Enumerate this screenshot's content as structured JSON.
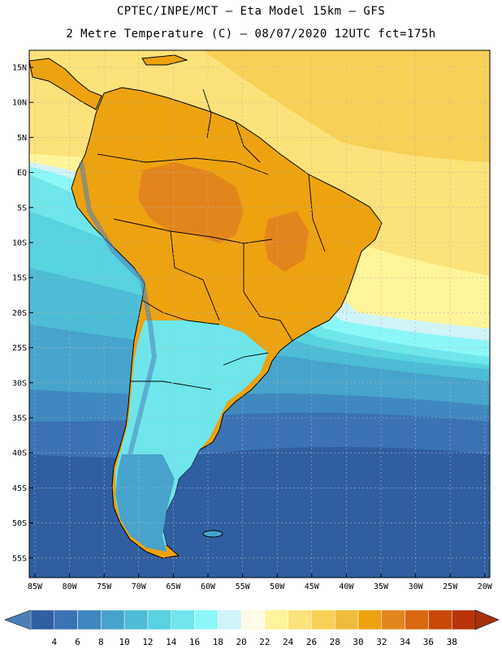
{
  "header": {
    "title_line1": "CPTEC/INPE/MCT –  Eta Model 15km – GFS",
    "title_line2": "2 Metre Temperature (C) – 08/07/2020 12UTC fct=175h"
  },
  "axes": {
    "lat_labels": [
      "15N",
      "10N",
      "5N",
      "EQ",
      "5S",
      "10S",
      "15S",
      "20S",
      "25S",
      "30S",
      "35S",
      "40S",
      "45S",
      "50S",
      "55S"
    ],
    "lon_labels": [
      "85W",
      "80W",
      "75W",
      "70W",
      "65W",
      "60W",
      "55W",
      "50W",
      "45W",
      "40W",
      "35W",
      "30W",
      "25W",
      "20W"
    ]
  },
  "colorbar": {
    "ticks": [
      "4",
      "6",
      "8",
      "10",
      "12",
      "14",
      "16",
      "18",
      "20",
      "22",
      "24",
      "26",
      "28",
      "30",
      "32",
      "34",
      "36",
      "38"
    ],
    "colors": [
      "#2f5fa0",
      "#3a72b4",
      "#3f88c0",
      "#47a3cc",
      "#4dbcd6",
      "#57d2df",
      "#6ee6ec",
      "#8df7f7",
      "#d0f4f8",
      "#fffbe8",
      "#fff49a",
      "#fde27a",
      "#f8d055",
      "#f0bc3c",
      "#eda20f",
      "#e2861c",
      "#da6712",
      "#c94808",
      "#b8340a"
    ],
    "below_color": "#4d7fb8",
    "above_color": "#a8300c"
  },
  "map_colors": {
    "ocean_south": "#2f5fa0",
    "land_warm": "#eda20f",
    "land_hot": "#e2861c",
    "grid": "#b6b6b6",
    "boundary": "#000000"
  }
}
